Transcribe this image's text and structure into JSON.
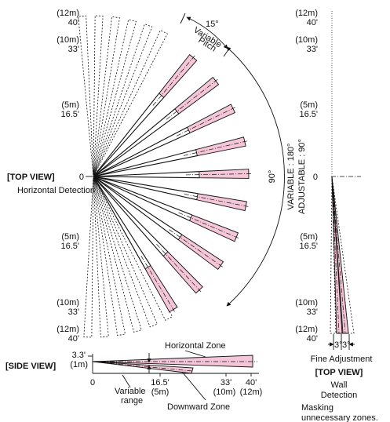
{
  "top_view": {
    "ticks": {
      "m12_top": "(12m)",
      "ft40_top": "40'",
      "m10_top": "(10m)",
      "ft33_top": "33'",
      "m5_top": "(5m)",
      "ft16_top": "16.5'",
      "zero": "0",
      "m5_bot": "(5m)",
      "ft16_bot": "16.5'",
      "m10_bot": "(10m)",
      "ft33_bot": "33'",
      "m12_bot": "(12m)",
      "ft40_bot": "40'"
    },
    "title": "[TOP VIEW]",
    "subtitle": "Horizontal Detection",
    "pitch_angle": "15°",
    "pitch_label_1": "Variable",
    "pitch_label_2": "Pitch",
    "arc_angle": "90°",
    "variable_label": "VARIABLE : 180°",
    "adjustable_label": "ADJUSTABLE : 90°",
    "zone_count": 10,
    "ghost_count": 6
  },
  "wall_view": {
    "ticks": {
      "m12_top": "(12m)",
      "ft40_top": "40'",
      "m10_top": "(10m)",
      "ft33_top": "33'",
      "m5_top": "(5m)",
      "ft16_top": "16.5'",
      "zero": "0",
      "m5_bot": "(5m)",
      "ft16_bot": "16.5'",
      "m10_bot": "(10m)",
      "ft33_bot": "33'",
      "m12_bot": "(12m)",
      "ft40_bot": "40'"
    },
    "fine_adjust": "Fine Adjustment",
    "gap_left": "3°",
    "gap_right": "3°",
    "title": "[TOP VIEW]",
    "subtitle_1": "Wall",
    "subtitle_2": "Detection",
    "masking_1": "Masking",
    "masking_2": "unnecessary zones."
  },
  "side_view": {
    "title": "[SIDE VIEW]",
    "height_ft": "3.3'",
    "height_m": "(1m)",
    "horizontal_zone": "Horizontal Zone",
    "downward_zone": "Downward Zone",
    "variable_1": "Variable",
    "variable_2": "range",
    "ticks": [
      "0",
      "16.5'",
      "(5m)",
      "33'",
      "(10m)",
      "40'",
      "(12m)"
    ]
  }
}
